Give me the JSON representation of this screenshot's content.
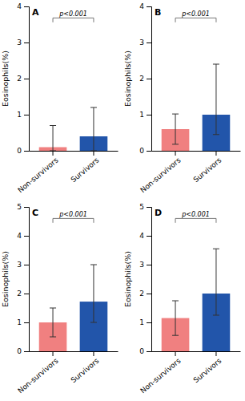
{
  "chart_data": [
    {
      "type": "bar",
      "title": "A",
      "ylabel": "Eosinophils(%)",
      "categories": [
        "Non-survivors",
        "Survivors"
      ],
      "values": [
        0.1,
        0.4
      ],
      "error_up": [
        0.6,
        0.8
      ],
      "error_down": [
        0.1,
        0.4
      ],
      "colors": [
        "#F08080",
        "#2255AA"
      ],
      "ylim": [
        0,
        4
      ],
      "yticks": [
        0,
        1,
        2,
        3,
        4
      ],
      "annotations": [
        "p<0.001"
      ],
      "grid": false
    },
    {
      "type": "bar",
      "title": "B",
      "ylabel": "Eosinophils(%)",
      "categories": [
        "Non-survivors",
        "Survivors"
      ],
      "values": [
        0.6,
        1.0
      ],
      "error_up": [
        0.42,
        1.4
      ],
      "error_down": [
        0.42,
        0.55
      ],
      "colors": [
        "#F08080",
        "#2255AA"
      ],
      "ylim": [
        0,
        4
      ],
      "yticks": [
        0,
        1,
        2,
        3,
        4
      ],
      "annotations": [
        "p<0.001"
      ],
      "grid": false
    },
    {
      "type": "bar",
      "title": "C",
      "ylabel": "Eosinophils(%)",
      "categories": [
        "Non-survivors",
        "Survivors"
      ],
      "values": [
        1.0,
        1.72
      ],
      "error_up": [
        0.5,
        1.28
      ],
      "error_down": [
        0.5,
        0.72
      ],
      "colors": [
        "#F08080",
        "#2255AA"
      ],
      "ylim": [
        0,
        5
      ],
      "yticks": [
        0,
        1,
        2,
        3,
        4,
        5
      ],
      "annotations": [
        "p<0.001"
      ],
      "grid": false
    },
    {
      "type": "bar",
      "title": "D",
      "ylabel": "Eosinophils(%)",
      "categories": [
        "Non-survivors",
        "Survivors"
      ],
      "values": [
        1.15,
        2.0
      ],
      "error_up": [
        0.6,
        1.55
      ],
      "error_down": [
        0.6,
        0.75
      ],
      "colors": [
        "#F08080",
        "#2255AA"
      ],
      "ylim": [
        0,
        5
      ],
      "yticks": [
        0,
        1,
        2,
        3,
        4,
        5
      ],
      "annotations": [
        "p<0.001"
      ],
      "grid": false
    }
  ]
}
